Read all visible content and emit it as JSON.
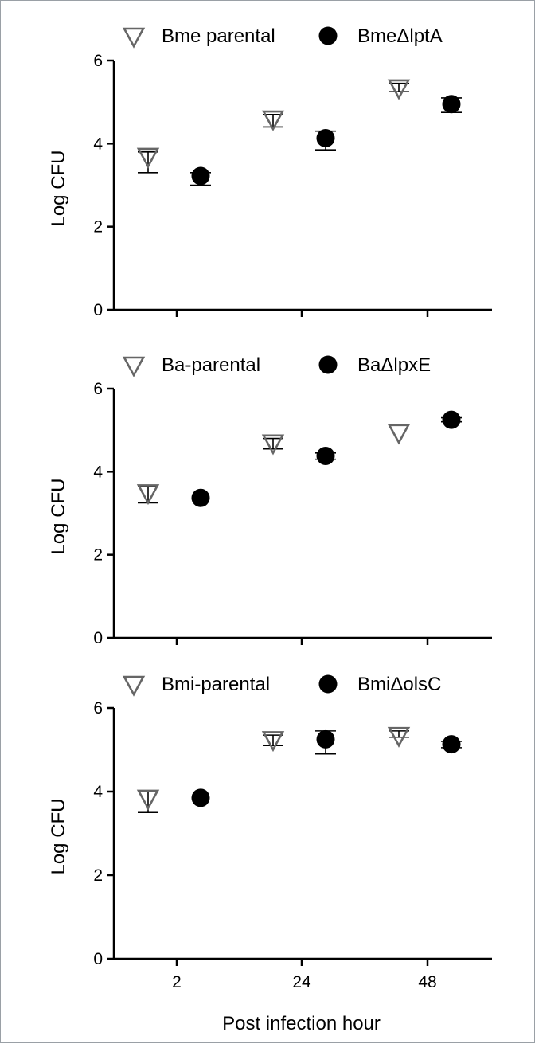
{
  "chart_data": [
    {
      "type": "scatter",
      "title": "",
      "xlabel": "",
      "ylabel": "Log CFU",
      "ylim": [
        0,
        6
      ],
      "yticks": [
        "0",
        "2",
        "4",
        "6"
      ],
      "xticks": [
        "2",
        "24",
        "48"
      ],
      "legend_position": "top",
      "series": [
        {
          "name": "Bme parental",
          "marker": "triangle-down-open",
          "color": "#666666",
          "points": [
            {
              "x": "2",
              "y": 3.7,
              "err_low": 3.3,
              "err_high": 3.8
            },
            {
              "x": "24",
              "y": 4.6,
              "err_low": 4.4,
              "err_high": 4.7
            },
            {
              "x": "48",
              "y": 5.35,
              "err_low": 5.25,
              "err_high": 5.45
            }
          ]
        },
        {
          "name": "BmeΔlptA",
          "marker": "circle-filled",
          "color": "#000000",
          "points": [
            {
              "x": "2",
              "y": 3.22,
              "err_low": 3.0,
              "err_high": 3.3
            },
            {
              "x": "24",
              "y": 4.13,
              "err_low": 3.85,
              "err_high": 4.3
            },
            {
              "x": "48",
              "y": 4.95,
              "err_low": 4.75,
              "err_high": 5.1
            }
          ]
        }
      ]
    },
    {
      "type": "scatter",
      "title": "",
      "xlabel": "",
      "ylabel": "Log CFU",
      "ylim": [
        0,
        6
      ],
      "yticks": [
        "0",
        "2",
        "4",
        "6"
      ],
      "xticks": [
        "2",
        "24",
        "48"
      ],
      "legend_position": "top",
      "series": [
        {
          "name": "Ba-parental",
          "marker": "triangle-down-open",
          "color": "#666666",
          "points": [
            {
              "x": "2",
              "y": 3.5,
              "err_low": 3.25,
              "err_high": 3.65
            },
            {
              "x": "24",
              "y": 4.7,
              "err_low": 4.55,
              "err_high": 4.8
            },
            {
              "x": "48",
              "y": 4.95,
              "err_low": 4.95,
              "err_high": 4.95
            }
          ]
        },
        {
          "name": "BaΔlpxE",
          "marker": "circle-filled",
          "color": "#000000",
          "points": [
            {
              "x": "2",
              "y": 3.37,
              "err_low": 3.37,
              "err_high": 3.37
            },
            {
              "x": "24",
              "y": 4.38,
              "err_low": 4.3,
              "err_high": 4.45
            },
            {
              "x": "48",
              "y": 5.25,
              "err_low": 5.2,
              "err_high": 5.3
            }
          ]
        }
      ]
    },
    {
      "type": "scatter",
      "title": "",
      "xlabel": "Post infection hour",
      "ylabel": "Log CFU",
      "ylim": [
        0,
        6
      ],
      "yticks": [
        "0",
        "2",
        "4",
        "6"
      ],
      "xticks": [
        "2",
        "24",
        "48"
      ],
      "legend_position": "top",
      "series": [
        {
          "name": "Bmi-parental",
          "marker": "triangle-down-open",
          "color": "#666666",
          "points": [
            {
              "x": "2",
              "y": 3.85,
              "err_low": 3.5,
              "err_high": 4.0
            },
            {
              "x": "24",
              "y": 5.25,
              "err_low": 5.1,
              "err_high": 5.35
            },
            {
              "x": "48",
              "y": 5.35,
              "err_low": 5.3,
              "err_high": 5.45
            }
          ]
        },
        {
          "name": "BmiΔolsC",
          "marker": "circle-filled",
          "color": "#000000",
          "points": [
            {
              "x": "2",
              "y": 3.85,
              "err_low": 3.85,
              "err_high": 3.85
            },
            {
              "x": "24",
              "y": 5.25,
              "err_low": 4.9,
              "err_high": 5.45
            },
            {
              "x": "48",
              "y": 5.13,
              "err_low": 5.05,
              "err_high": 5.2
            }
          ]
        }
      ]
    }
  ]
}
